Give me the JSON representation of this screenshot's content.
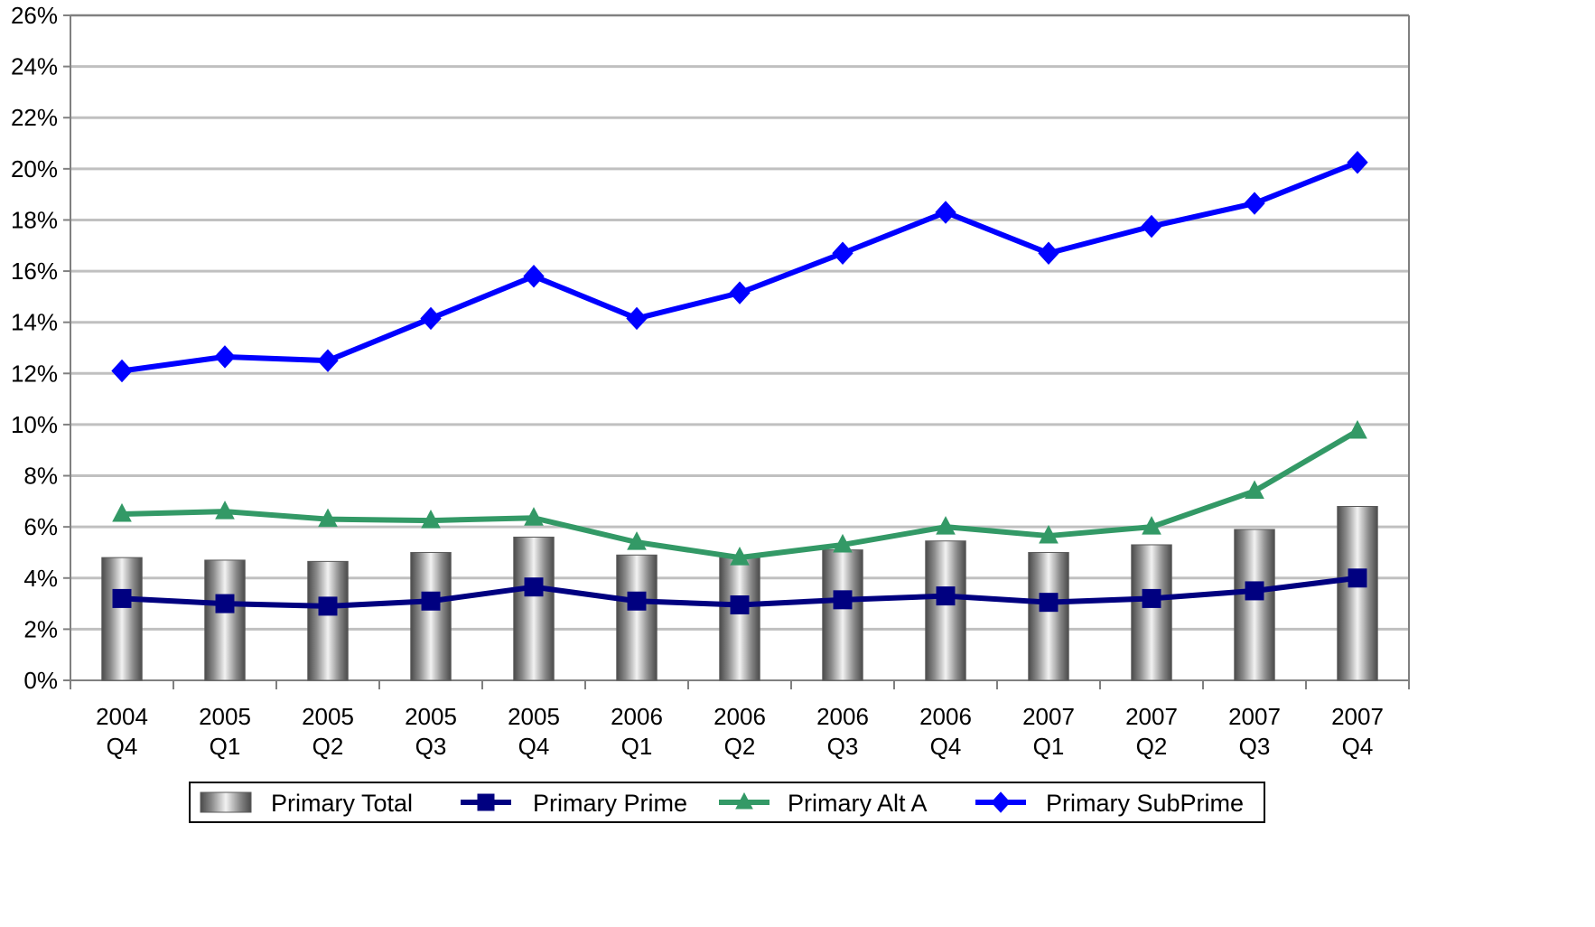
{
  "chart_data": {
    "type": "bar",
    "x_categories": [
      [
        "2004",
        "Q4"
      ],
      [
        "2005",
        "Q1"
      ],
      [
        "2005",
        "Q2"
      ],
      [
        "2005",
        "Q3"
      ],
      [
        "2005",
        "Q4"
      ],
      [
        "2006",
        "Q1"
      ],
      [
        "2006",
        "Q2"
      ],
      [
        "2006",
        "Q3"
      ],
      [
        "2006",
        "Q4"
      ],
      [
        "2007",
        "Q1"
      ],
      [
        "2007",
        "Q2"
      ],
      [
        "2007",
        "Q3"
      ],
      [
        "2007",
        "Q4"
      ]
    ],
    "y_tick_labels": [
      "0%",
      "2%",
      "4%",
      "6%",
      "8%",
      "10%",
      "12%",
      "14%",
      "16%",
      "18%",
      "20%",
      "22%",
      "24%",
      "26%"
    ],
    "ylim": [
      0,
      26
    ],
    "grid": true,
    "legend_position": "bottom",
    "series": [
      {
        "name": "Primary Total",
        "type": "bar",
        "color": "#a9a9a9",
        "values": [
          4.8,
          4.7,
          4.65,
          5.0,
          5.6,
          4.9,
          4.8,
          5.1,
          5.45,
          5.0,
          5.3,
          5.9,
          6.8
        ]
      },
      {
        "name": "Primary Prime",
        "type": "line",
        "marker": "square",
        "color": "#000080",
        "values": [
          3.2,
          3.0,
          2.9,
          3.1,
          3.65,
          3.1,
          2.95,
          3.15,
          3.3,
          3.05,
          3.2,
          3.5,
          4.0
        ]
      },
      {
        "name": "Primary Alt A",
        "type": "line",
        "marker": "triangle",
        "color": "#339966",
        "values": [
          6.5,
          6.6,
          6.3,
          6.25,
          6.35,
          5.4,
          4.8,
          5.3,
          6.0,
          5.65,
          6.0,
          7.4,
          9.75
        ]
      },
      {
        "name": "Primary SubPrime",
        "type": "line",
        "marker": "diamond",
        "color": "#0000ff",
        "values": [
          12.1,
          12.65,
          12.5,
          14.15,
          15.8,
          14.15,
          15.15,
          16.7,
          18.3,
          16.7,
          17.75,
          18.65,
          20.25
        ]
      }
    ]
  }
}
